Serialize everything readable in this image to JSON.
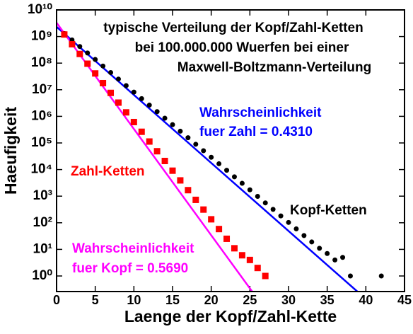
{
  "chart_data": {
    "type": "scatter",
    "title": [
      "typische Verteilung der Kopf/Zahl-Ketten",
      "bei 100.000.000 Wuerfen bei einer",
      "Maxwell-Boltzmann-Verteilung"
    ],
    "xlabel": "Laenge der Kopf/Zahl-Kette",
    "ylabel": "Haeufigkeit",
    "xlim": [
      0,
      45
    ],
    "xticks": [
      0,
      5,
      10,
      15,
      20,
      25,
      30,
      35,
      40,
      45
    ],
    "ylim": [
      0.26,
      10000000000
    ],
    "ylog": true,
    "yticks": [
      {
        "value": 1,
        "label": "10⁰"
      },
      {
        "value": 10,
        "label": "10¹"
      },
      {
        "value": 100,
        "label": "10²"
      },
      {
        "value": 1000,
        "label": "10³"
      },
      {
        "value": 10000,
        "label": "10⁴"
      },
      {
        "value": 100000,
        "label": "10⁵"
      },
      {
        "value": 1000000,
        "label": "10⁶"
      },
      {
        "value": 10000000,
        "label": "10⁷"
      },
      {
        "value": 100000000,
        "label": "10⁸"
      },
      {
        "value": 1000000000,
        "label": "10⁹"
      },
      {
        "value": 10000000000,
        "label": "10¹⁰"
      }
    ],
    "series": [
      {
        "name": "Kopf-Ketten",
        "color": "#000000",
        "marker": "circle",
        "x": [
          1,
          2,
          3,
          4,
          5,
          6,
          7,
          8,
          9,
          10,
          11,
          12,
          13,
          14,
          15,
          16,
          17,
          18,
          19,
          20,
          21,
          22,
          23,
          24,
          25,
          26,
          27,
          28,
          29,
          30,
          31,
          32,
          33,
          34,
          35,
          36,
          37,
          38,
          42
        ],
        "values": [
          1300000000,
          742000000,
          422000000,
          240000000,
          137000000,
          77700000,
          44200000,
          25200000,
          14300000,
          8150000,
          4640000,
          2640000,
          1500000,
          854000,
          486000,
          276000,
          157000,
          89500,
          50900,
          29000,
          16500,
          9380,
          5340,
          3040,
          1730,
          983,
          559,
          318,
          181,
          103,
          59,
          33,
          19,
          11,
          7,
          4,
          5,
          1,
          1
        ]
      },
      {
        "name": "Zahl-Ketten",
        "color": "#ff0000",
        "marker": "square",
        "x": [
          1,
          2,
          3,
          4,
          5,
          6,
          7,
          8,
          9,
          10,
          11,
          12,
          13,
          14,
          15,
          16,
          17,
          18,
          19,
          20,
          21,
          22,
          23,
          24,
          25,
          26,
          27
        ],
        "values": [
          1190000000,
          512000000,
          221000000,
          95100000,
          41000000,
          17700000,
          7610000,
          3280000,
          1410000,
          610000,
          263000,
          113000,
          48800,
          21000,
          9070,
          3910,
          1680,
          726,
          313,
          135,
          58,
          25,
          11,
          6,
          4,
          2,
          1
        ]
      }
    ],
    "fits": [
      {
        "label": [
          "Wahrscheinlichkeit",
          "fuer Zahl = 0.4310"
        ],
        "color": "#0000ff",
        "x": [
          0,
          38.9
        ],
        "values": [
          2300000000,
          0.26
        ]
      },
      {
        "label": [
          "Wahrscheinlichkeit",
          "fuer Kopf = 0.5690"
        ],
        "color": "#ff00ff",
        "x": [
          0,
          25.3
        ],
        "values": [
          3300000000,
          0.26
        ]
      }
    ]
  }
}
